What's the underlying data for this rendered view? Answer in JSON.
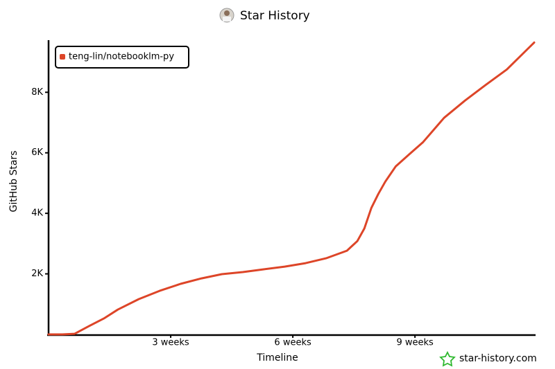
{
  "chart_data": {
    "type": "line",
    "title": "Star History",
    "x_label": "Timeline",
    "y_label": "GitHub Stars",
    "watermark": "star-history.com",
    "legend": "top-left",
    "x": [
      0,
      2.4,
      4.5,
      7.2,
      9.5,
      11.9,
      15.5,
      19.1,
      22.7,
      26.3,
      29.8,
      33.4,
      37,
      40.6,
      44.2,
      47.7,
      51.3,
      53.1,
      54.3,
      55.5,
      56.7,
      57.9,
      59.7,
      62.1,
      64.4,
      68,
      71.6,
      75.2,
      78.8,
      83.5
    ],
    "series": [
      {
        "name": "teng-lin/notebooklm-py",
        "color": "#dd4528",
        "values": [
          0,
          0,
          20,
          300,
          525,
          820,
          1165,
          1440,
          1670,
          1850,
          1990,
          2060,
          2150,
          2240,
          2355,
          2515,
          2765,
          3085,
          3500,
          4180,
          4640,
          5050,
          5555,
          5965,
          6355,
          7155,
          7725,
          8250,
          8755,
          9645
        ]
      }
    ],
    "xlim": [
      0,
      83.5
    ],
    "xticks": [
      {
        "value": 21,
        "label": "3 weeks"
      },
      {
        "value": 42,
        "label": "6 weeks"
      },
      {
        "value": 63,
        "label": "9 weeks"
      }
    ],
    "ylim": [
      0,
      9700
    ],
    "yticks": [
      {
        "value": 2000,
        "label": "2K"
      },
      {
        "value": 4000,
        "label": "4K"
      },
      {
        "value": 6000,
        "label": "6K"
      },
      {
        "value": 8000,
        "label": "8K"
      }
    ]
  }
}
